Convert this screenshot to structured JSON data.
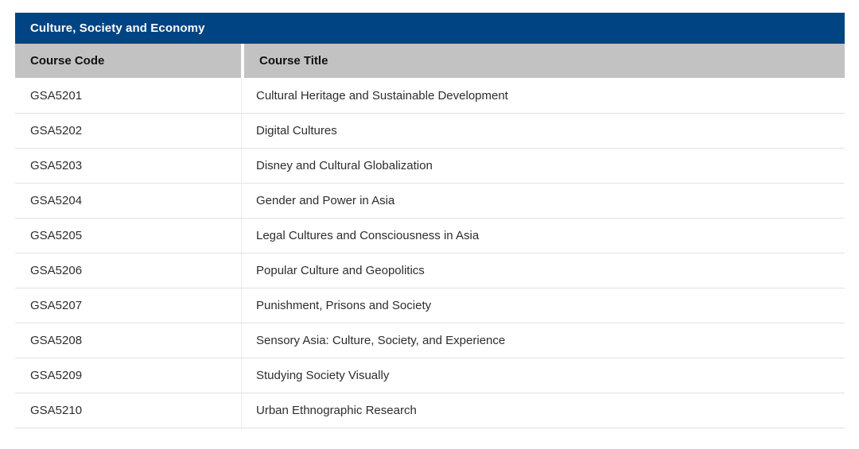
{
  "table": {
    "title": "Culture, Society and Economy",
    "title_bg_color": "#004483",
    "header_bg_color": "#c2c2c2",
    "columns": [
      "Course Code",
      "Course Title"
    ],
    "rows": [
      {
        "code": "GSA5201",
        "title": "Cultural Heritage and Sustainable Development"
      },
      {
        "code": "GSA5202",
        "title": "Digital Cultures"
      },
      {
        "code": "GSA5203",
        "title": "Disney and Cultural Globalization"
      },
      {
        "code": "GSA5204",
        "title": "Gender and Power in Asia"
      },
      {
        "code": "GSA5205",
        "title": "Legal Cultures and Consciousness in Asia"
      },
      {
        "code": "GSA5206",
        "title": "Popular Culture and Geopolitics"
      },
      {
        "code": "GSA5207",
        "title": "Punishment, Prisons and Society"
      },
      {
        "code": "GSA5208",
        "title": "Sensory Asia: Culture, Society, and Experience"
      },
      {
        "code": "GSA5209",
        "title": "Studying Society Visually"
      },
      {
        "code": "GSA5210",
        "title": "Urban Ethnographic Research"
      }
    ]
  }
}
